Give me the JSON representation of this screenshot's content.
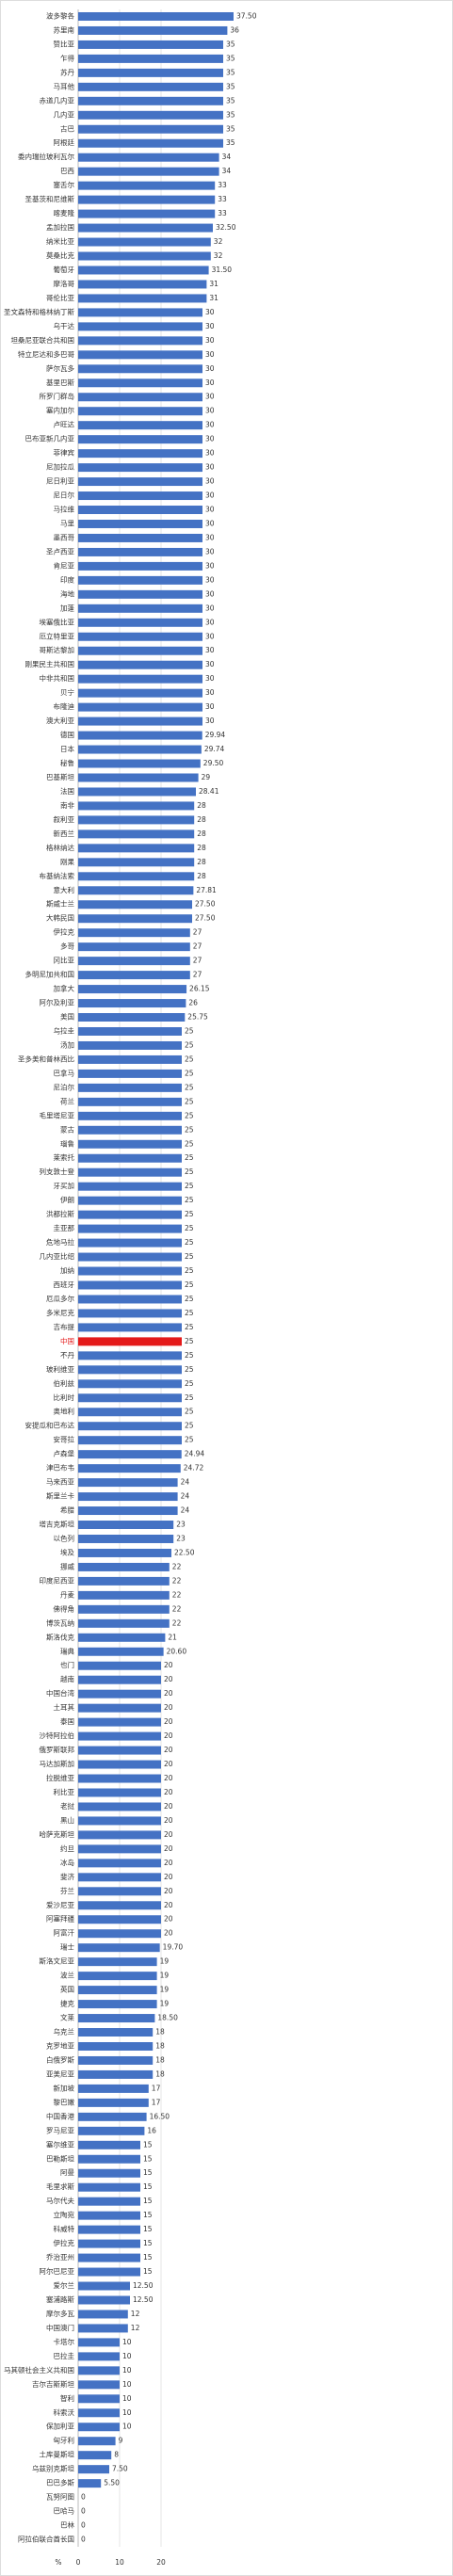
{
  "chart_data": {
    "type": "barh",
    "xlabel": "%",
    "categories": [
      "波多黎各",
      "苏里南",
      "赞比亚",
      "乍得",
      "苏丹",
      "马耳他",
      "赤道几内亚",
      "几内亚",
      "古巴",
      "阿根廷",
      "委内瑞拉玻利瓦尔",
      "巴西",
      "塞舌尔",
      "圣基茨和尼维斯",
      "喀麦隆",
      "孟加拉国",
      "纳米比亚",
      "莫桑比克",
      "葡萄牙",
      "摩洛哥",
      "哥伦比亚",
      "圣文森特和格林纳丁斯",
      "乌干达",
      "坦桑尼亚联合共和国",
      "特立尼达和多巴哥",
      "萨尔瓦多",
      "基里巴斯",
      "所罗门群岛",
      "塞内加尔",
      "卢旺达",
      "巴布亚新几内亚",
      "菲律宾",
      "尼加拉瓜",
      "尼日利亚",
      "尼日尔",
      "马拉维",
      "马里",
      "墨西哥",
      "圣卢西亚",
      "肯尼亚",
      "印度",
      "海地",
      "加蓬",
      "埃塞俄比亚",
      "厄立特里亚",
      "哥斯达黎加",
      "刚果民主共和国",
      "中非共和国",
      "贝宁",
      "布隆迪",
      "澳大利亚",
      "德国",
      "日本",
      "秘鲁",
      "巴基斯坦",
      "法国",
      "南非",
      "叙利亚",
      "新西兰",
      "格林纳达",
      "刚果",
      "布基纳法索",
      "意大利",
      "斯威士兰",
      "大韩民国",
      "伊拉克",
      "多哥",
      "冈比亚",
      "多明尼加共和国",
      "加拿大",
      "阿尔及利亚",
      "美国",
      "乌拉圭",
      "汤加",
      "圣多美和普林西比",
      "巴拿马",
      "尼泊尔",
      "荷兰",
      "毛里塔尼亚",
      "蒙古",
      "瑙鲁",
      "莱索托",
      "列支敦士登",
      "牙买加",
      "伊朗",
      "洪都拉斯",
      "圭亚那",
      "危地马拉",
      "几内亚比绍",
      "加纳",
      "西班牙",
      "厄瓜多尔",
      "多米尼克",
      "吉布提",
      "中国",
      "不丹",
      "玻利维亚",
      "伯利兹",
      "比利时",
      "奥地利",
      "安提瓜和巴布达",
      "安哥拉",
      "卢森堡",
      "津巴布韦",
      "马来西亚",
      "斯里兰卡",
      "希腊",
      "塔吉克斯坦",
      "以色列",
      "埃及",
      "挪威",
      "印度尼西亚",
      "丹麦",
      "佛得角",
      "博茨瓦纳",
      "斯洛伐克",
      "瑞典",
      "也门",
      "越南",
      "中国台湾",
      "土耳其",
      "泰国",
      "沙特阿拉伯",
      "俄罗斯联邦",
      "马达加斯加",
      "拉脱维亚",
      "利比亚",
      "老挝",
      "黑山",
      "哈萨克斯坦",
      "约旦",
      "冰岛",
      "斐济",
      "芬兰",
      "爱沙尼亚",
      "阿塞拜疆",
      "阿富汗",
      "瑞士",
      "斯洛文尼亚",
      "波兰",
      "英国",
      "捷克",
      "文莱",
      "乌克兰",
      "克罗地亚",
      "白俄罗斯",
      "亚美尼亚",
      "新加坡",
      "黎巴嫩",
      "中国香港",
      "罗马尼亚",
      "塞尔维亚",
      "巴勒斯坦",
      "阿曼",
      "毛里求斯",
      "马尔代夫",
      "立陶宛",
      "科威特",
      "伊拉克",
      "乔治亚州",
      "阿尔巴尼亚",
      "爱尔兰",
      "塞浦路斯",
      "摩尔多瓦",
      "中国澳门",
      "卡塔尔",
      "巴拉圭",
      "马其顿社会主义共和国",
      "吉尔吉斯斯坦",
      "智利",
      "科索沃",
      "保加利亚",
      "匈牙利",
      "土库曼斯坦",
      "乌兹别克斯坦",
      "巴巴多斯",
      "瓦努阿图",
      "巴哈马",
      "巴林",
      "阿拉伯联合酋长国"
    ],
    "values": [
      37.5,
      36,
      35,
      35,
      35,
      35,
      35,
      35,
      35,
      35,
      34,
      34,
      33,
      33,
      33,
      32.5,
      32,
      32,
      31.5,
      31,
      31,
      30,
      30,
      30,
      30,
      30,
      30,
      30,
      30,
      30,
      30,
      30,
      30,
      30,
      30,
      30,
      30,
      30,
      30,
      30,
      30,
      30,
      30,
      30,
      30,
      30,
      30,
      30,
      30,
      30,
      30,
      29.94,
      29.74,
      29.5,
      29,
      28.41,
      28,
      28,
      28,
      28,
      28,
      28,
      27.81,
      27.5,
      27.5,
      27,
      27,
      27,
      27,
      26.15,
      26,
      25.75,
      25,
      25,
      25,
      25,
      25,
      25,
      25,
      25,
      25,
      25,
      25,
      25,
      25,
      25,
      25,
      25,
      25,
      25,
      25,
      25,
      25,
      25,
      25,
      25,
      25,
      25,
      25,
      25,
      25,
      25,
      24.94,
      24.72,
      24,
      24,
      24,
      23,
      23,
      22.5,
      22,
      22,
      22,
      22,
      22,
      21,
      20.6,
      20,
      20,
      20,
      20,
      20,
      20,
      20,
      20,
      20,
      20,
      20,
      20,
      20,
      20,
      20,
      20,
      20,
      20,
      20,
      20,
      19.7,
      19,
      19,
      19,
      19,
      18.5,
      18,
      18,
      18,
      18,
      17,
      17,
      16.5,
      16,
      15,
      15,
      15,
      15,
      15,
      15,
      15,
      15,
      15,
      15,
      12.5,
      12.5,
      12,
      12,
      10,
      10,
      10,
      10,
      10,
      10,
      10,
      9,
      8,
      7.5,
      5.5,
      0,
      0,
      0,
      0
    ],
    "value_labels": [
      "37.50",
      "36",
      "35",
      "35",
      "35",
      "35",
      "35",
      "35",
      "35",
      "35",
      "34",
      "34",
      "33",
      "33",
      "33",
      "32.50",
      "32",
      "32",
      "31.50",
      "31",
      "31",
      "30",
      "30",
      "30",
      "30",
      "30",
      "30",
      "30",
      "30",
      "30",
      "30",
      "30",
      "30",
      "30",
      "30",
      "30",
      "30",
      "30",
      "30",
      "30",
      "30",
      "30",
      "30",
      "30",
      "30",
      "30",
      "30",
      "30",
      "30",
      "30",
      "30",
      "29.94",
      "29.74",
      "29.50",
      "29",
      "28.41",
      "28",
      "28",
      "28",
      "28",
      "28",
      "28",
      "27.81",
      "27.50",
      "27.50",
      "27",
      "27",
      "27",
      "27",
      "26.15",
      "26",
      "25.75",
      "25",
      "25",
      "25",
      "25",
      "25",
      "25",
      "25",
      "25",
      "25",
      "25",
      "25",
      "25",
      "25",
      "25",
      "25",
      "25",
      "25",
      "25",
      "25",
      "25",
      "25",
      "25",
      "25",
      "25",
      "25",
      "25",
      "25",
      "25",
      "25",
      "25",
      "24.94",
      "24.72",
      "24",
      "24",
      "24",
      "23",
      "23",
      "22.50",
      "22",
      "22",
      "22",
      "22",
      "22",
      "21",
      "20.60",
      "20",
      "20",
      "20",
      "20",
      "20",
      "20",
      "20",
      "20",
      "20",
      "20",
      "20",
      "20",
      "20",
      "20",
      "20",
      "20",
      "20",
      "20",
      "20",
      "20",
      "19.70",
      "19",
      "19",
      "19",
      "19",
      "18.50",
      "18",
      "18",
      "18",
      "18",
      "17",
      "17",
      "16.50",
      "16",
      "15",
      "15",
      "15",
      "15",
      "15",
      "15",
      "15",
      "15",
      "15",
      "15",
      "12.50",
      "12.50",
      "12",
      "12",
      "10",
      "10",
      "10",
      "10",
      "10",
      "10",
      "10",
      "9",
      "8",
      "7.50",
      "5.50",
      "0",
      "0",
      "0",
      "0"
    ],
    "color": "#4472c4",
    "highlight_category": "中国",
    "highlight_color": "#e41a1a",
    "xlim": [
      0,
      40
    ],
    "xticks": [
      0,
      10,
      20
    ],
    "grid": true
  }
}
